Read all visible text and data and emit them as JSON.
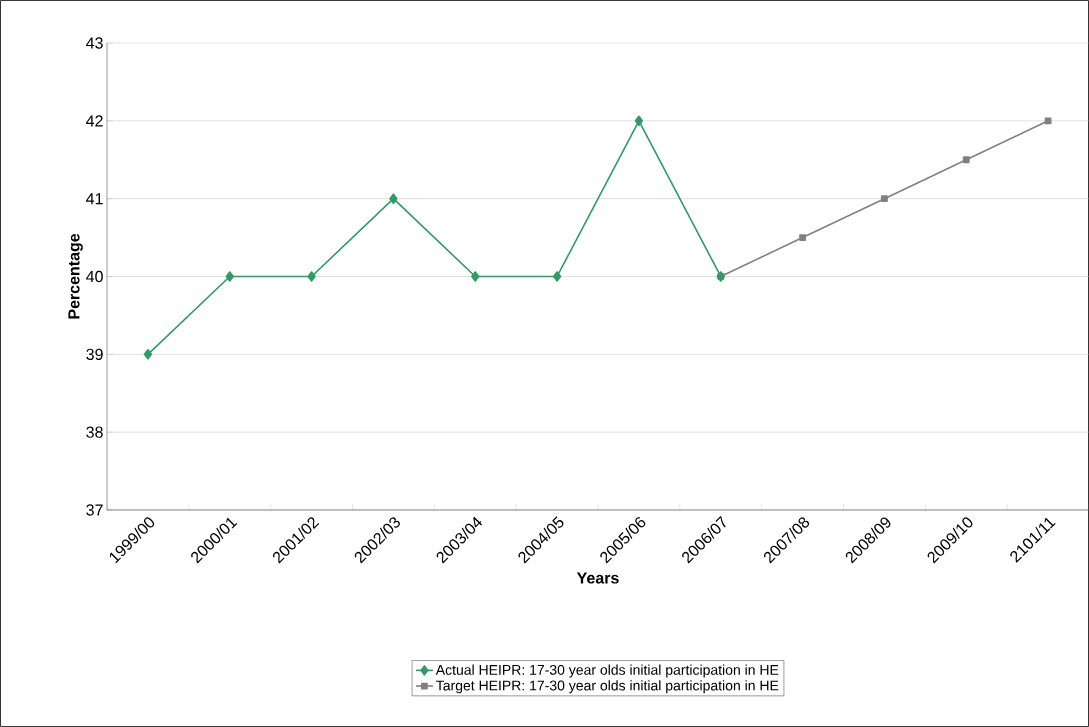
{
  "chart_data": {
    "type": "line",
    "xlabel": "Years",
    "ylabel": "Percentage",
    "categories": [
      "1999/00",
      "2000/01",
      "2001/02",
      "2002/03",
      "2003/04",
      "2004/05",
      "2005/06",
      "2006/07",
      "2007/08",
      "2008/09",
      "2009/10",
      "2101/11"
    ],
    "series": [
      {
        "name": "Actual HEIPR: 17-30 year olds initial participation in HE",
        "color": "#339966",
        "marker": "diamond",
        "values": [
          39,
          40,
          40,
          41,
          40,
          40,
          42,
          40,
          null,
          null,
          null,
          null
        ]
      },
      {
        "name": "Target HEIPR: 17-30 year olds initial participation in HE",
        "color": "#808080",
        "marker": "square",
        "values": [
          null,
          null,
          null,
          null,
          null,
          null,
          null,
          40,
          40.5,
          41,
          41.5,
          42
        ]
      }
    ],
    "ylim": [
      37,
      43
    ],
    "yticks": [
      37,
      38,
      39,
      40,
      41,
      42,
      43
    ],
    "grid": "y",
    "legend": "bottom",
    "line_style": "solid"
  }
}
